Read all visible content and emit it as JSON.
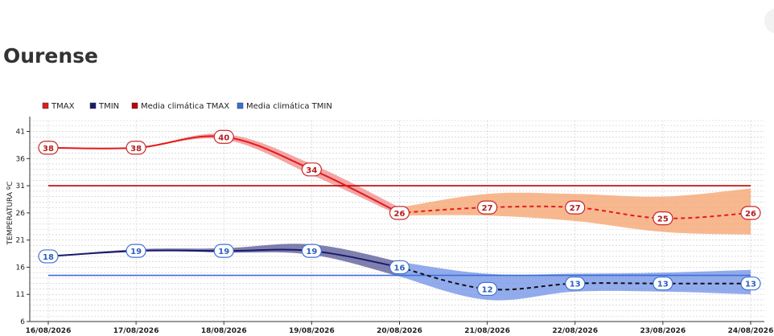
{
  "page": {
    "title": "Ourense"
  },
  "colors": {
    "tmax": "#e31a1c",
    "tmax_band": "#f08080",
    "tmax_fc": "#e31a1c",
    "tmax_fc_band": "#f5a06a",
    "tmin": "#1a1a6e",
    "tmin_band": "#4a4a8c",
    "tmin_fc": "#111111",
    "tmin_fc_band": "#6d8fe6",
    "clim_tmax": "#c00000",
    "clim_tmin": "#3a6fd8",
    "label_tmax_border": "#c62828",
    "label_tmin_border": "#3f72d6"
  },
  "chart_data": {
    "type": "line",
    "legend": [
      {
        "name": "TMAX",
        "color": "#e31a1c"
      },
      {
        "name": "TMIN",
        "color": "#1a1a6e"
      },
      {
        "name": "Media climática TMAX",
        "color": "#c00000"
      },
      {
        "name": "Media climática TMIN",
        "color": "#3a6fd8"
      }
    ],
    "legend_position": "top-left",
    "ylabel": "TEMPERATURA ºC",
    "xlabel": "",
    "ylim": [
      6,
      43
    ],
    "yticks": [
      6,
      11,
      16,
      21,
      26,
      31,
      36,
      41
    ],
    "grid": true,
    "x": [
      "16/08/2026",
      "17/08/2026",
      "18/08/2026",
      "19/08/2026",
      "20/08/2026",
      "21/08/2026",
      "22/08/2026",
      "23/08/2026",
      "24/08/2026"
    ],
    "series": [
      {
        "name": "TMAX",
        "values": [
          38,
          38,
          40,
          34,
          26,
          27,
          27,
          25,
          26
        ],
        "band_low": [
          38,
          38,
          39.5,
          33,
          25.5,
          25.5,
          24.5,
          22.5,
          22
        ],
        "band_high": [
          38,
          38,
          40.5,
          35,
          27,
          29.5,
          29.5,
          29,
          30.5
        ],
        "observed_until": 4
      },
      {
        "name": "TMIN",
        "values": [
          18,
          19,
          19,
          19,
          16,
          12,
          13,
          13,
          13
        ],
        "band_low": [
          18,
          19,
          18.7,
          18.3,
          14.3,
          10,
          11.5,
          11.5,
          11
        ],
        "band_high": [
          18,
          19.3,
          19.5,
          20.2,
          17,
          14.8,
          14.8,
          15,
          15.5
        ],
        "observed_until": 4
      }
    ],
    "climate_means": [
      {
        "name": "Media climática TMAX",
        "value": 31
      },
      {
        "name": "Media climática TMIN",
        "value": 14.5
      }
    ]
  }
}
